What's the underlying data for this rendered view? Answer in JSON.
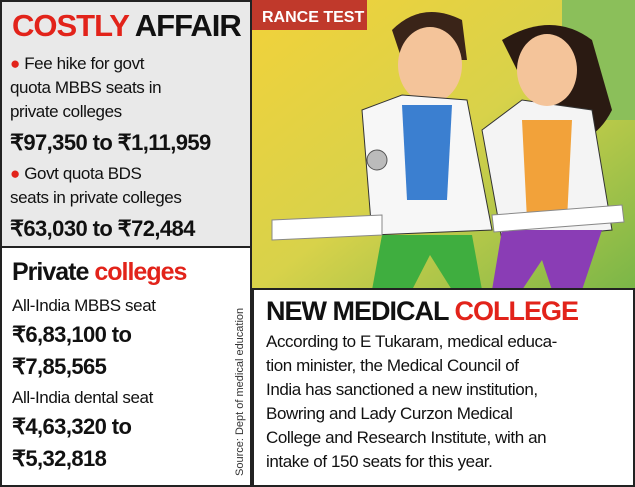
{
  "costly_affair": {
    "title_1": "COSTLY",
    "title_2": "AFFAIR",
    "items": [
      {
        "lines": [
          "Fee hike for govt",
          "quota MBBS seats in",
          "private colleges"
        ],
        "range": "₹97,350 to ₹1,11,959"
      },
      {
        "lines": [
          "Govt quota BDS",
          "seats in private colleges"
        ],
        "range": "₹63,030 to ₹72,484"
      }
    ]
  },
  "private_colleges": {
    "title_1": "Private",
    "title_2": "colleges",
    "items": [
      {
        "label": "All-India MBBS seat",
        "range_lines": [
          "₹6,83,100 to",
          "₹7,85,565"
        ]
      },
      {
        "label": "All-India dental seat",
        "range_lines": [
          "₹4,63,320 to",
          "₹5,32,818"
        ]
      }
    ]
  },
  "source": "Source: Dept of medical education",
  "illustration": {
    "sign": "RANCE TEST"
  },
  "new_college": {
    "title_1": "NEW MEDICAL",
    "title_2": "COLLEGE",
    "body_lines": [
      "According to E Tukaram, medical educa-",
      "tion minister, the Medical Council of",
      "India has sanctioned a new institution,",
      "Bowring and Lady Curzon Medical",
      "College and Research Institute, with an",
      "intake of 150 seats for this year."
    ]
  }
}
